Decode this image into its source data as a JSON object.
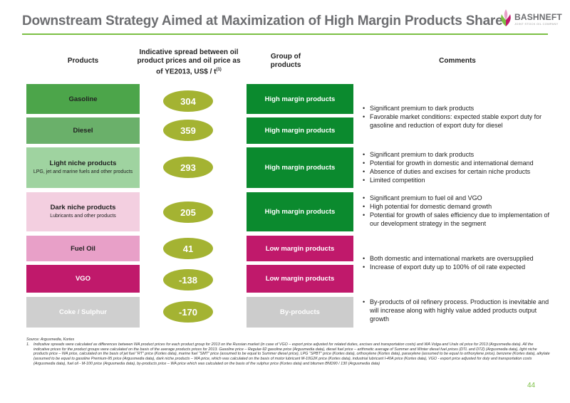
{
  "header": {
    "title": "Downstream Strategy Aimed at Maximization of High Margin Products Share",
    "logo_name": "BASHNEFT",
    "logo_sub": "JOINT STOCK OIL COMPANY"
  },
  "columns": {
    "products": "Products",
    "spread_line1": "Indicative spread between oil",
    "spread_line2": "product prices and oil price as",
    "spread_line3": "of YE2013, US$ / t",
    "spread_note": "(1)",
    "group_line1": "Group of",
    "group_line2": "products",
    "comments": "Comments"
  },
  "rows": [
    {
      "product": "Gasoline",
      "sub": "",
      "spread": "304",
      "group": "High margin products"
    },
    {
      "product": "Diesel",
      "sub": "",
      "spread": "359",
      "group": "High margin products"
    },
    {
      "product": "Light niche products",
      "sub": "LPG, jet and marine fuels and other products",
      "spread": "293",
      "group": "High margin products"
    },
    {
      "product": "Dark niche products",
      "sub": "Lubricants and other products",
      "spread": "205",
      "group": "High margin products"
    },
    {
      "product": "Fuel Oil",
      "sub": "",
      "spread": "41",
      "group": "Low margin products"
    },
    {
      "product": "VGO",
      "sub": "",
      "spread": "-138",
      "group": "Low margin products"
    },
    {
      "product": "Coke / Sulphur",
      "sub": "",
      "spread": "-170",
      "group": "By-products"
    }
  ],
  "comments": [
    [
      "Significant premium to dark products",
      "Favorable market conditions: expected stable export duty for gasoline and reduction of export duty for diesel"
    ],
    [
      "Significant premium to dark products",
      "Potential for growth in domestic and international demand",
      "Absence of duties and excises for certain niche products",
      "Limited competition"
    ],
    [
      "Significant premium to fuel oil and VGO",
      "High potential for domestic demand growth",
      "Potential for growth of sales efficiency due to implementation of our development strategy in the segment"
    ],
    [
      "Both domestic and international markets are oversupplied",
      "Increase of export duty up to 100% of oil rate expected"
    ],
    [
      "By-products of oil refinery process. Production is inevitable and will increase along with highly value added products output growth"
    ]
  ],
  "footnote": {
    "source": "Source: Argusmedia, Kortes",
    "num": "1.",
    "text": "Indicative spreads were calculated as differences between WA product prices for each product group for 2013 on the Russian market (in case of VGO – export price adjusted for related duties, excises and transportation costs) and WA Volga and Urals oil price for 2013 (Argusmedia data). All the indicative prices for the product groups were calculated on the basis of the average products prices for 2013. Gasoline price – Regular-92 gasoline price (Argusmedia data), diesel fuel price – arithmetic average of Summer and Winter diesel fuel prices (DTL and DTZ) (Argusmedia data), light niche products price – WA price, calculated on the basis of jet fuel “RT” price (Kortes data), marine fuel “SMT” price (assumed to be equal to Summer diesel price), LPG “SPBT” price (Kortes data), orthoxylene (Kortes data), paraxylene (assumed to be equal to orthoxylene price), benzene (Kortes data), alkylate (assumed to be equal to gasoline Premium-95 price (Argusmedia data), dark niche products – WA price, which was calculated on the basis of motor lubricant M-10G2K price (Kortes data), industrial lubricant I-40A price (Kortes data), VGO - export price adjusted for duty and transportation costs (Argusmedia data), fuel oil - M-100 price (Argusmedia data), by-products price – WA price which was calculated on the basis of the sulphur price (Kortes data) and bitumen BND90 / 130 (Argusmedia data)"
  },
  "page_number": "44",
  "colors": {
    "gasoline": "#4ca54a",
    "diesel": "#6ab06a",
    "light_niche": "#9fd3a0",
    "dark_niche": "#f3cfe0",
    "fuel_oil": "#e8a0c8",
    "vgo": "#c0196b",
    "coke": "#cfcfcf",
    "high_margin": "#0b8a2e",
    "low_margin": "#c0196b",
    "by_products": "#cccccc",
    "oval": "#a4b332",
    "accent": "#7bbf44"
  }
}
